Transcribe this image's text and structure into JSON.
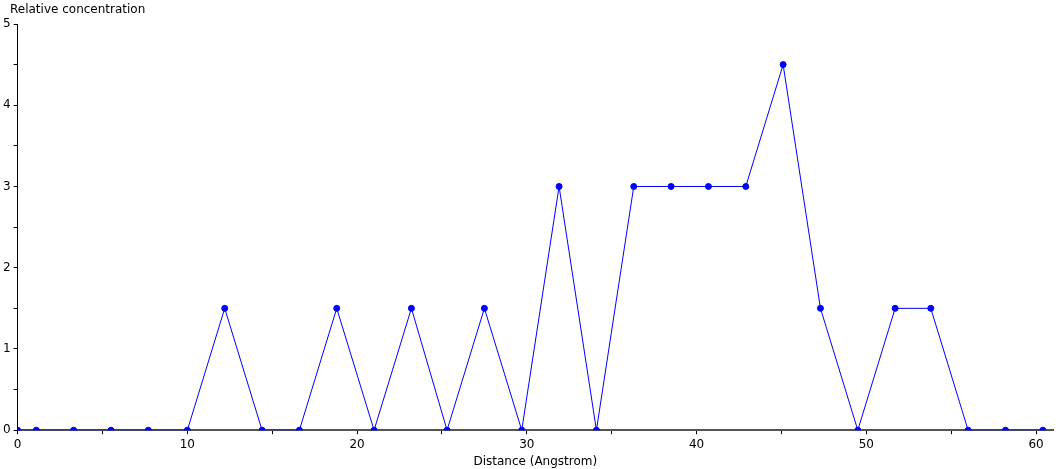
{
  "chart_data": {
    "type": "line",
    "xlabel": "Distance (Angstrom)",
    "ylabel": "Relative concentration",
    "x": [
      0,
      1.1,
      3.3,
      5.5,
      7.7,
      10.0,
      12.2,
      14.4,
      16.6,
      18.8,
      21.0,
      23.2,
      25.3,
      27.5,
      29.7,
      31.9,
      34.1,
      36.3,
      38.5,
      40.7,
      42.9,
      45.1,
      47.3,
      49.5,
      51.7,
      53.8,
      56.0,
      58.2,
      60.4
    ],
    "series": [
      {
        "color": "#0000ff",
        "values": [
          0,
          0,
          0,
          0,
          0,
          0,
          1.5,
          0,
          0,
          1.5,
          0,
          1.5,
          0,
          1.5,
          0,
          3,
          0,
          3,
          3,
          3,
          3,
          4.5,
          1.5,
          0,
          1.5,
          1.5,
          0,
          0,
          0
        ]
      }
    ],
    "xlim": [
      0,
      61
    ],
    "ylim": [
      0,
      5
    ],
    "xticks": [
      0,
      {
        "value": 5,
        "label": null
      },
      10,
      {
        "value": 15,
        "label": null
      },
      20,
      {
        "value": 25,
        "label": null
      },
      30,
      {
        "value": 35,
        "label": null
      },
      40,
      {
        "value": 45,
        "label": null
      },
      50,
      {
        "value": 55,
        "label": null
      },
      60
    ],
    "yticks": [
      0,
      {
        "value": 0.5,
        "label": null
      },
      1,
      {
        "value": 1.5,
        "label": null
      },
      2,
      {
        "value": 2.5,
        "label": null
      },
      3,
      {
        "value": 3.5,
        "label": null
      },
      4,
      {
        "value": 4.5,
        "label": null
      },
      5
    ],
    "grid": false,
    "legend": false,
    "marker": "circle",
    "line_style": "solid"
  }
}
